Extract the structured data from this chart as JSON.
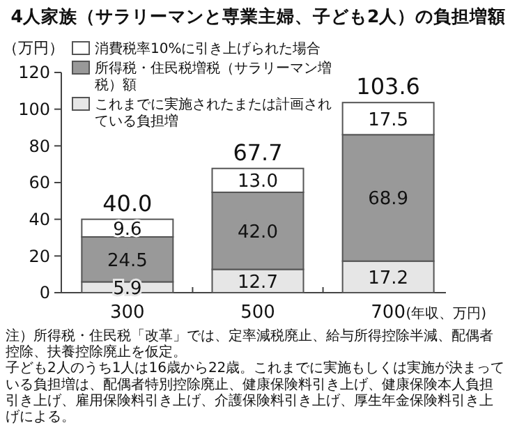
{
  "chart_data": {
    "type": "bar",
    "title": "4人家族（サラリーマンと専業主婦、子ども2人）の負担増額",
    "ylabel": "（万円）",
    "xlabel": "(年収、万円)",
    "categories": [
      "300",
      "500",
      "700"
    ],
    "stacked": true,
    "ylim": [
      0,
      120
    ],
    "yticks": [
      0,
      20,
      40,
      60,
      80,
      100,
      120
    ],
    "grid": false,
    "legend": "top left",
    "series": [
      {
        "name": "これまでに実施されたまたは計画されている負担増",
        "color": "#e6e6e6",
        "values": [
          5.9,
          12.7,
          17.2
        ],
        "value_labels": [
          "5.9",
          "12.7",
          "17.2"
        ]
      },
      {
        "name": "所得税・住民税増税（サラリーマン増税）額",
        "color": "#999999",
        "values": [
          24.5,
          42.0,
          68.9
        ],
        "value_labels": [
          "24.5",
          "42.0",
          "68.9"
        ]
      },
      {
        "name": "消費税率10%に引き上げられた場合",
        "color": "#ffffff",
        "values": [
          9.6,
          13.0,
          17.5
        ],
        "value_labels": [
          "9.6",
          "13.0",
          "17.5"
        ]
      }
    ],
    "totals": [
      "40.0",
      "67.7",
      "103.6"
    ],
    "annotations": [
      "注）所得税・住民税「改革」では、定率減税廃止、給与所得控除半減、配偶者控除、扶養控除廃止を仮定。",
      "子ども2人のうち1人は16歳から22歳。これまでに実施もしくは実施が決まっている負担増は、配偶者特別控除廃止、健康保険料引き上げ、健康保険本人負担引き上げ、雇用保険料引き上げ、介護保険料引き上げ、厚生年金保険料引き上げによる。"
    ]
  }
}
